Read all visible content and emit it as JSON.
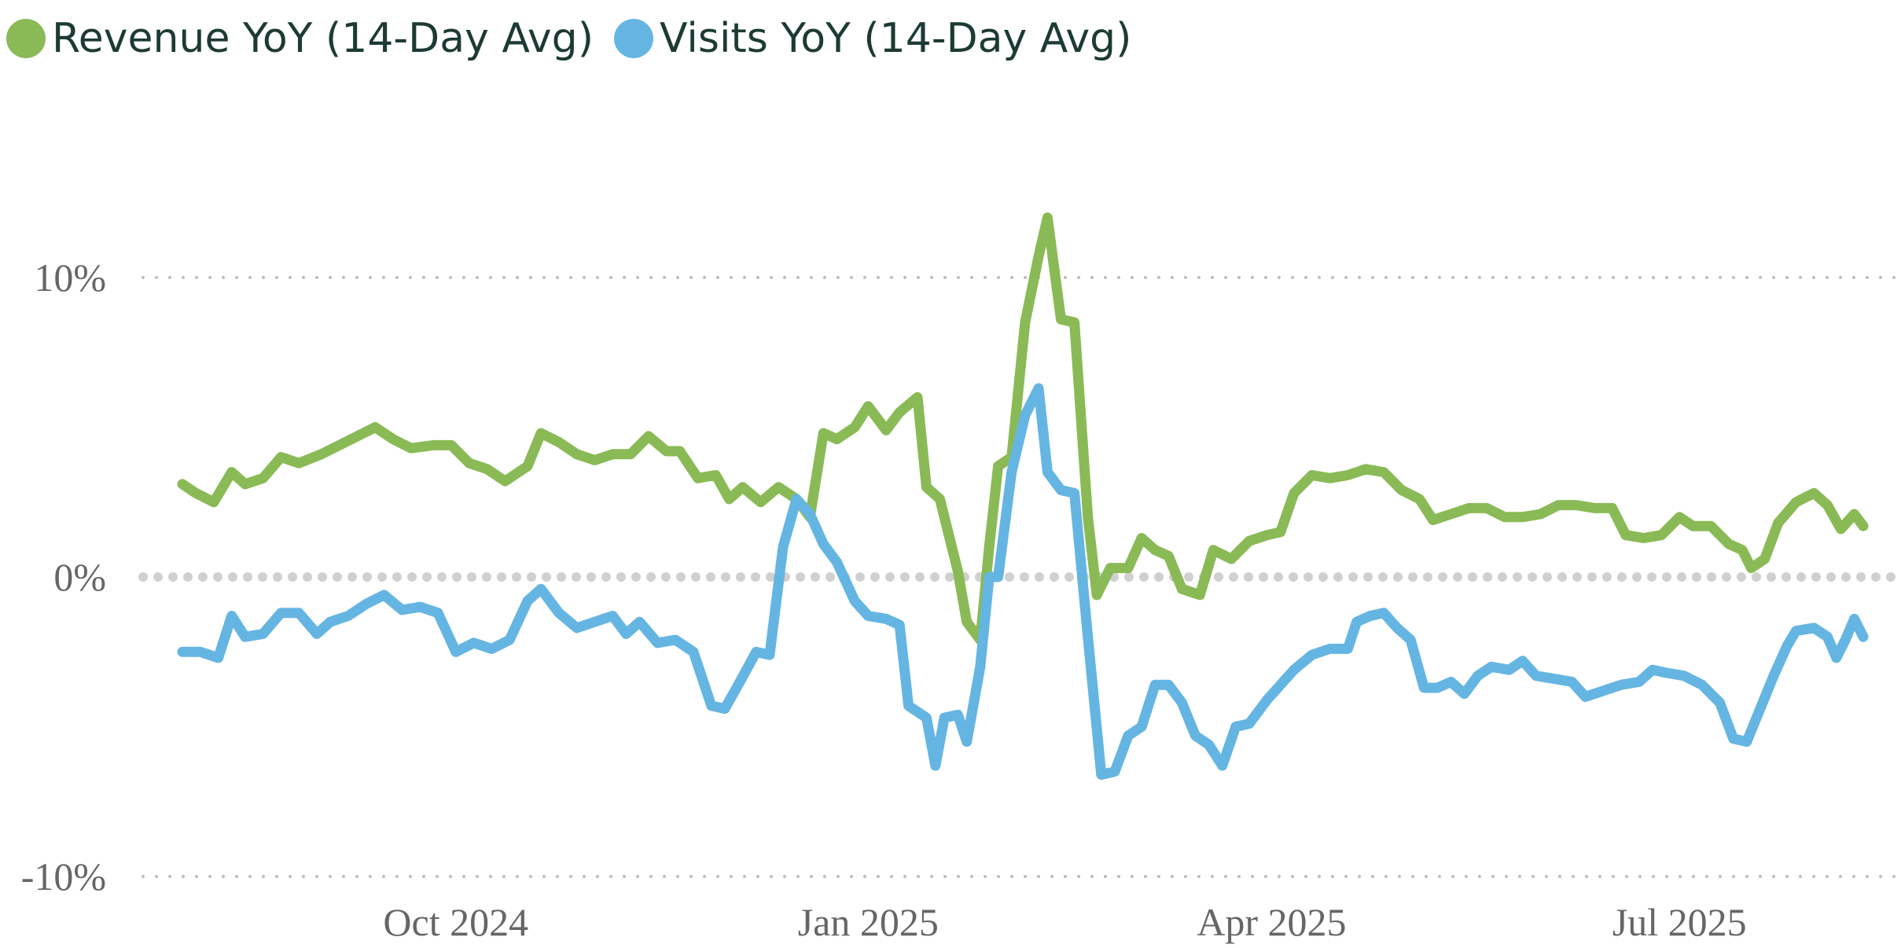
{
  "chart_data": {
    "type": "line",
    "title": "",
    "xlabel": "",
    "ylabel": "",
    "ylim": [
      -10,
      10
    ],
    "yticks": [
      {
        "value": 10,
        "label": "10%"
      },
      {
        "value": 0,
        "label": "0%"
      },
      {
        "value": -10,
        "label": "-10%"
      }
    ],
    "xlim": [
      "2024-08-01",
      "2025-08-11"
    ],
    "xticks": [
      {
        "date": "2024-10-01",
        "label": "Oct 2024"
      },
      {
        "date": "2025-01-01",
        "label": "Jan 2025"
      },
      {
        "date": "2025-04-01",
        "label": "Apr 2025"
      },
      {
        "date": "2025-07-01",
        "label": "Jul 2025"
      }
    ],
    "grid": "horizontal dotted",
    "legend_position": "top-left",
    "series": [
      {
        "name": "Revenue YoY (14-Day Avg)",
        "color": "#8aba56",
        "points": [
          [
            "2024-08-01",
            3.1
          ],
          [
            "2024-08-04",
            2.8
          ],
          [
            "2024-08-08",
            2.5
          ],
          [
            "2024-08-12",
            3.5
          ],
          [
            "2024-08-15",
            3.1
          ],
          [
            "2024-08-19",
            3.3
          ],
          [
            "2024-08-23",
            4.0
          ],
          [
            "2024-08-27",
            3.8
          ],
          [
            "2024-09-01",
            4.1
          ],
          [
            "2024-09-05",
            4.4
          ],
          [
            "2024-09-09",
            4.7
          ],
          [
            "2024-09-13",
            5.0
          ],
          [
            "2024-09-17",
            4.6
          ],
          [
            "2024-09-21",
            4.3
          ],
          [
            "2024-09-26",
            4.4
          ],
          [
            "2024-09-30",
            4.4
          ],
          [
            "2024-10-04",
            3.8
          ],
          [
            "2024-10-08",
            3.6
          ],
          [
            "2024-10-12",
            3.2
          ],
          [
            "2024-10-17",
            3.7
          ],
          [
            "2024-10-20",
            4.8
          ],
          [
            "2024-10-24",
            4.5
          ],
          [
            "2024-10-28",
            4.1
          ],
          [
            "2024-11-01",
            3.9
          ],
          [
            "2024-11-05",
            4.1
          ],
          [
            "2024-11-09",
            4.1
          ],
          [
            "2024-11-13",
            4.7
          ],
          [
            "2024-11-17",
            4.2
          ],
          [
            "2024-11-20",
            4.2
          ],
          [
            "2024-11-24",
            3.3
          ],
          [
            "2024-11-28",
            3.4
          ],
          [
            "2024-12-01",
            2.6
          ],
          [
            "2024-12-04",
            3.0
          ],
          [
            "2024-12-08",
            2.5
          ],
          [
            "2024-12-12",
            3.0
          ],
          [
            "2024-12-16",
            2.6
          ],
          [
            "2024-12-19",
            2.0
          ],
          [
            "2024-12-22",
            4.8
          ],
          [
            "2024-12-25",
            4.6
          ],
          [
            "2024-12-29",
            5.0
          ],
          [
            "2025-01-01",
            5.7
          ],
          [
            "2025-01-05",
            4.9
          ],
          [
            "2025-01-08",
            5.5
          ],
          [
            "2025-01-12",
            6.0
          ],
          [
            "2025-01-14",
            3.0
          ],
          [
            "2025-01-17",
            2.6
          ],
          [
            "2025-01-21",
            0.2
          ],
          [
            "2025-01-23",
            -1.5
          ],
          [
            "2025-01-26",
            -2.1
          ],
          [
            "2025-01-28",
            1.0
          ],
          [
            "2025-01-30",
            3.7
          ],
          [
            "2025-02-02",
            4.0
          ],
          [
            "2025-02-05",
            8.5
          ],
          [
            "2025-02-08",
            10.7
          ],
          [
            "2025-02-10",
            12.0
          ],
          [
            "2025-02-13",
            8.6
          ],
          [
            "2025-02-16",
            8.5
          ],
          [
            "2025-02-19",
            2.0
          ],
          [
            "2025-02-21",
            -0.6
          ],
          [
            "2025-02-24",
            0.3
          ],
          [
            "2025-02-28",
            0.3
          ],
          [
            "2025-03-03",
            1.3
          ],
          [
            "2025-03-06",
            0.9
          ],
          [
            "2025-03-09",
            0.7
          ],
          [
            "2025-03-12",
            -0.4
          ],
          [
            "2025-03-16",
            -0.6
          ],
          [
            "2025-03-19",
            0.9
          ],
          [
            "2025-03-23",
            0.6
          ],
          [
            "2025-03-27",
            1.2
          ],
          [
            "2025-03-31",
            1.4
          ],
          [
            "2025-04-03",
            1.5
          ],
          [
            "2025-04-06",
            2.8
          ],
          [
            "2025-04-10",
            3.4
          ],
          [
            "2025-04-14",
            3.3
          ],
          [
            "2025-04-18",
            3.4
          ],
          [
            "2025-04-22",
            3.6
          ],
          [
            "2025-04-26",
            3.5
          ],
          [
            "2025-04-30",
            2.9
          ],
          [
            "2025-05-04",
            2.6
          ],
          [
            "2025-05-07",
            1.9
          ],
          [
            "2025-05-11",
            2.1
          ],
          [
            "2025-05-15",
            2.3
          ],
          [
            "2025-05-19",
            2.3
          ],
          [
            "2025-05-23",
            2.0
          ],
          [
            "2025-05-27",
            2.0
          ],
          [
            "2025-05-31",
            2.1
          ],
          [
            "2025-06-04",
            2.4
          ],
          [
            "2025-06-08",
            2.4
          ],
          [
            "2025-06-12",
            2.3
          ],
          [
            "2025-06-16",
            2.3
          ],
          [
            "2025-06-19",
            1.4
          ],
          [
            "2025-06-23",
            1.3
          ],
          [
            "2025-06-27",
            1.4
          ],
          [
            "2025-07-01",
            2.0
          ],
          [
            "2025-07-04",
            1.7
          ],
          [
            "2025-07-08",
            1.7
          ],
          [
            "2025-07-12",
            1.1
          ],
          [
            "2025-07-15",
            0.9
          ],
          [
            "2025-07-17",
            0.3
          ],
          [
            "2025-07-20",
            0.6
          ],
          [
            "2025-07-23",
            1.8
          ],
          [
            "2025-07-27",
            2.5
          ],
          [
            "2025-07-31",
            2.8
          ],
          [
            "2025-08-03",
            2.4
          ],
          [
            "2025-08-06",
            1.6
          ],
          [
            "2025-08-09",
            2.1
          ],
          [
            "2025-08-11",
            1.7
          ]
        ]
      },
      {
        "name": "Visits YoY (14-Day Avg)",
        "color": "#65b5e3",
        "points": [
          [
            "2024-08-01",
            -2.5
          ],
          [
            "2024-08-05",
            -2.5
          ],
          [
            "2024-08-09",
            -2.7
          ],
          [
            "2024-08-12",
            -1.3
          ],
          [
            "2024-08-15",
            -2.0
          ],
          [
            "2024-08-19",
            -1.9
          ],
          [
            "2024-08-23",
            -1.2
          ],
          [
            "2024-08-27",
            -1.2
          ],
          [
            "2024-08-31",
            -1.9
          ],
          [
            "2024-09-03",
            -1.5
          ],
          [
            "2024-09-07",
            -1.3
          ],
          [
            "2024-09-11",
            -0.9
          ],
          [
            "2024-09-15",
            -0.6
          ],
          [
            "2024-09-19",
            -1.1
          ],
          [
            "2024-09-23",
            -1.0
          ],
          [
            "2024-09-27",
            -1.2
          ],
          [
            "2024-10-01",
            -2.5
          ],
          [
            "2024-10-05",
            -2.2
          ],
          [
            "2024-10-09",
            -2.4
          ],
          [
            "2024-10-13",
            -2.1
          ],
          [
            "2024-10-17",
            -0.8
          ],
          [
            "2024-10-20",
            -0.4
          ],
          [
            "2024-10-24",
            -1.2
          ],
          [
            "2024-10-28",
            -1.7
          ],
          [
            "2024-11-01",
            -1.5
          ],
          [
            "2024-11-05",
            -1.3
          ],
          [
            "2024-11-08",
            -1.9
          ],
          [
            "2024-11-11",
            -1.5
          ],
          [
            "2024-11-15",
            -2.2
          ],
          [
            "2024-11-19",
            -2.1
          ],
          [
            "2024-11-23",
            -2.5
          ],
          [
            "2024-11-27",
            -4.3
          ],
          [
            "2024-11-30",
            -4.4
          ],
          [
            "2024-12-03",
            -3.6
          ],
          [
            "2024-12-07",
            -2.5
          ],
          [
            "2024-12-10",
            -2.6
          ],
          [
            "2024-12-13",
            1.0
          ],
          [
            "2024-12-16",
            2.6
          ],
          [
            "2024-12-19",
            2.1
          ],
          [
            "2024-12-22",
            1.1
          ],
          [
            "2024-12-25",
            0.5
          ],
          [
            "2024-12-29",
            -0.8
          ],
          [
            "2025-01-01",
            -1.3
          ],
          [
            "2025-01-05",
            -1.4
          ],
          [
            "2025-01-08",
            -1.6
          ],
          [
            "2025-01-10",
            -4.3
          ],
          [
            "2025-01-14",
            -4.7
          ],
          [
            "2025-01-16",
            -6.3
          ],
          [
            "2025-01-18",
            -4.7
          ],
          [
            "2025-01-21",
            -4.6
          ],
          [
            "2025-01-23",
            -5.5
          ],
          [
            "2025-01-26",
            -3.0
          ],
          [
            "2025-01-28",
            0.0
          ],
          [
            "2025-01-30",
            0.0
          ],
          [
            "2025-02-02",
            3.5
          ],
          [
            "2025-02-05",
            5.4
          ],
          [
            "2025-02-08",
            6.3
          ],
          [
            "2025-02-10",
            3.5
          ],
          [
            "2025-02-13",
            2.9
          ],
          [
            "2025-02-16",
            2.8
          ],
          [
            "2025-02-19",
            -2.0
          ],
          [
            "2025-02-22",
            -6.6
          ],
          [
            "2025-02-25",
            -6.5
          ],
          [
            "2025-02-28",
            -5.3
          ],
          [
            "2025-03-03",
            -5.0
          ],
          [
            "2025-03-06",
            -3.6
          ],
          [
            "2025-03-09",
            -3.6
          ],
          [
            "2025-03-12",
            -4.2
          ],
          [
            "2025-03-15",
            -5.3
          ],
          [
            "2025-03-18",
            -5.6
          ],
          [
            "2025-03-21",
            -6.3
          ],
          [
            "2025-03-24",
            -5.0
          ],
          [
            "2025-03-27",
            -4.9
          ],
          [
            "2025-03-31",
            -4.1
          ],
          [
            "2025-04-03",
            -3.6
          ],
          [
            "2025-04-06",
            -3.1
          ],
          [
            "2025-04-10",
            -2.6
          ],
          [
            "2025-04-14",
            -2.4
          ],
          [
            "2025-04-18",
            -2.4
          ],
          [
            "2025-04-20",
            -1.5
          ],
          [
            "2025-04-23",
            -1.3
          ],
          [
            "2025-04-26",
            -1.2
          ],
          [
            "2025-04-29",
            -1.7
          ],
          [
            "2025-05-02",
            -2.1
          ],
          [
            "2025-05-05",
            -3.7
          ],
          [
            "2025-05-08",
            -3.7
          ],
          [
            "2025-05-11",
            -3.5
          ],
          [
            "2025-05-14",
            -3.9
          ],
          [
            "2025-05-17",
            -3.3
          ],
          [
            "2025-05-20",
            -3.0
          ],
          [
            "2025-05-24",
            -3.1
          ],
          [
            "2025-05-27",
            -2.8
          ],
          [
            "2025-05-30",
            -3.3
          ],
          [
            "2025-06-03",
            -3.4
          ],
          [
            "2025-06-07",
            -3.5
          ],
          [
            "2025-06-10",
            -4.0
          ],
          [
            "2025-06-14",
            -3.8
          ],
          [
            "2025-06-18",
            -3.6
          ],
          [
            "2025-06-22",
            -3.5
          ],
          [
            "2025-06-25",
            -3.1
          ],
          [
            "2025-06-28",
            -3.2
          ],
          [
            "2025-07-02",
            -3.3
          ],
          [
            "2025-07-06",
            -3.6
          ],
          [
            "2025-07-10",
            -4.2
          ],
          [
            "2025-07-13",
            -5.4
          ],
          [
            "2025-07-16",
            -5.5
          ],
          [
            "2025-07-19",
            -4.4
          ],
          [
            "2025-07-22",
            -3.3
          ],
          [
            "2025-07-25",
            -2.3
          ],
          [
            "2025-07-27",
            -1.8
          ],
          [
            "2025-07-31",
            -1.7
          ],
          [
            "2025-08-03",
            -2.0
          ],
          [
            "2025-08-05",
            -2.7
          ],
          [
            "2025-08-07",
            -2.1
          ],
          [
            "2025-08-09",
            -1.4
          ],
          [
            "2025-08-11",
            -2.0
          ]
        ]
      }
    ]
  }
}
